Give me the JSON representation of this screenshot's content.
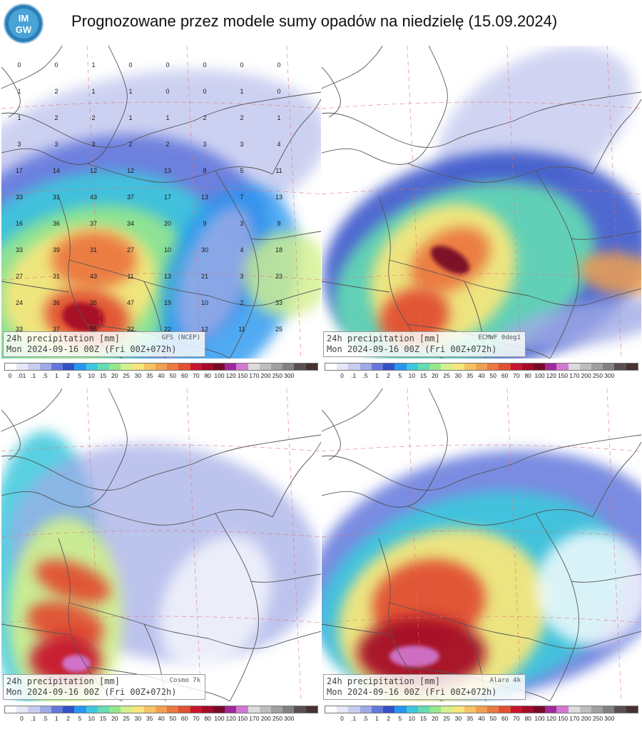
{
  "header": {
    "title": "Prognozowane przez modele sumy opadów na niedzielę (15.09.2024)",
    "logo_top": "IM",
    "logo_bottom": "GW"
  },
  "panels": [
    {
      "line1": "24h precipitation   [mm]",
      "model": "GFS (NCEP)",
      "line2": "Mon 2024-09-16 00Z (Fri 00Z+072h)"
    },
    {
      "line1": "24h precipitation   [mm]",
      "model": "ECMWF 0deg1",
      "line2": "Mon 2024-09-16 00Z (Fri 00Z+072h)"
    },
    {
      "line1": "24h precipitation   [mm]",
      "model": "Cosmo 7k",
      "line2": "Mon 2024-09-16 00Z (Fri 00Z+072h)"
    },
    {
      "line1": "24h precipitation   [mm]",
      "model": "Alaro 4k",
      "line2": "Mon 2024-09-16 00Z (Fri 00Z+072h)"
    }
  ],
  "scale_top": [
    "0",
    ".01",
    ".1",
    ".5",
    "1",
    "2",
    "5",
    "10",
    "15",
    "20",
    "25",
    "30",
    "35",
    "40",
    "50",
    "60",
    "70",
    "80",
    "100",
    "120",
    "150",
    "170",
    "200",
    "250",
    "300"
  ],
  "scale_bottom": [
    "0",
    ".1",
    ".5",
    "1",
    "2",
    "5",
    "10",
    "15",
    "20",
    "25",
    "30",
    "35",
    "40",
    "50",
    "60",
    "70",
    "80",
    "100",
    "120",
    "150",
    "170",
    "200",
    "250",
    "300"
  ],
  "scale_colors": [
    "#ffffff",
    "#e6e6f5",
    "#c8cdf0",
    "#a0aae6",
    "#6478dc",
    "#3250c8",
    "#2896f0",
    "#3cc8dc",
    "#64dcb4",
    "#96e68c",
    "#d2f08c",
    "#f5e67d",
    "#f5c364",
    "#f0a050",
    "#eb7841",
    "#e15032",
    "#c8142d",
    "#a50a28",
    "#780a28",
    "#a0289b",
    "#d278d2",
    "#dcdcdc",
    "#bebebe",
    "#a0a0a0",
    "#828282",
    "#5a5050",
    "#463232"
  ],
  "gfs_values": [
    {
      "v": "0"
    },
    {
      "v": "0"
    },
    {
      "v": "1"
    },
    {
      "v": "0"
    },
    {
      "v": "0"
    },
    {
      "v": "0"
    },
    {
      "v": "0"
    },
    {
      "v": "0"
    },
    {
      "v": "1"
    },
    {
      "v": "2"
    },
    {
      "v": "1"
    },
    {
      "v": "1"
    },
    {
      "v": "0"
    },
    {
      "v": "0"
    },
    {
      "v": "1"
    },
    {
      "v": "0"
    },
    {
      "v": "1"
    },
    {
      "v": "2"
    },
    {
      "v": "2"
    },
    {
      "v": "1"
    },
    {
      "v": "1"
    },
    {
      "v": "2"
    },
    {
      "v": "2"
    },
    {
      "v": "1"
    },
    {
      "v": "3"
    },
    {
      "v": "3"
    },
    {
      "v": "3"
    },
    {
      "v": "2"
    },
    {
      "v": "2"
    },
    {
      "v": "3"
    },
    {
      "v": "3"
    },
    {
      "v": "4"
    },
    {
      "v": "17"
    },
    {
      "v": "14"
    },
    {
      "v": "12"
    },
    {
      "v": "12"
    },
    {
      "v": "13"
    },
    {
      "v": "8"
    },
    {
      "v": "5"
    },
    {
      "v": "11"
    },
    {
      "v": "33"
    },
    {
      "v": "31"
    },
    {
      "v": "43"
    },
    {
      "v": "37"
    },
    {
      "v": "17"
    },
    {
      "v": "13"
    },
    {
      "v": "7"
    },
    {
      "v": "13"
    },
    {
      "v": "16"
    },
    {
      "v": "36"
    },
    {
      "v": "37"
    },
    {
      "v": "34"
    },
    {
      "v": "20"
    },
    {
      "v": "9"
    },
    {
      "v": "3"
    },
    {
      "v": "9"
    },
    {
      "v": "33"
    },
    {
      "v": "39"
    },
    {
      "v": "31"
    },
    {
      "v": "27"
    },
    {
      "v": "10"
    },
    {
      "v": "30"
    },
    {
      "v": "4"
    },
    {
      "v": "18"
    },
    {
      "v": "27"
    },
    {
      "v": "31"
    },
    {
      "v": "43"
    },
    {
      "v": "11"
    },
    {
      "v": "13"
    },
    {
      "v": "21"
    },
    {
      "v": "3"
    },
    {
      "v": "23"
    },
    {
      "v": "24"
    },
    {
      "v": "36"
    },
    {
      "v": "35"
    },
    {
      "v": "47"
    },
    {
      "v": "19"
    },
    {
      "v": "10"
    },
    {
      "v": "2"
    },
    {
      "v": "33"
    },
    {
      "v": "33"
    },
    {
      "v": "37"
    },
    {
      "v": "56"
    },
    {
      "v": "22"
    },
    {
      "v": "22"
    },
    {
      "v": "12"
    },
    {
      "v": "11"
    },
    {
      "v": "25"
    }
  ]
}
